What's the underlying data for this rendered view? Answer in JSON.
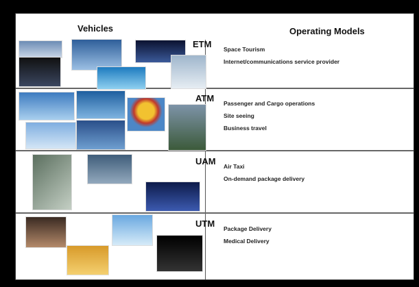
{
  "header": {
    "vehicles": "Vehicles",
    "operating_models": "Operating Models"
  },
  "rows": [
    {
      "label": "ETM",
      "models": [
        "Space Tourism",
        "Internet/communications service provider"
      ]
    },
    {
      "label": "ATM",
      "models": [
        "Passenger and Cargo operations",
        "Site seeing",
        "Business travel"
      ]
    },
    {
      "label": "UAM",
      "models": [
        "Air Taxi",
        "On-demand package delivery"
      ]
    },
    {
      "label": "UTM",
      "models": [
        "Package Delivery",
        "Medical Delivery"
      ]
    }
  ]
}
